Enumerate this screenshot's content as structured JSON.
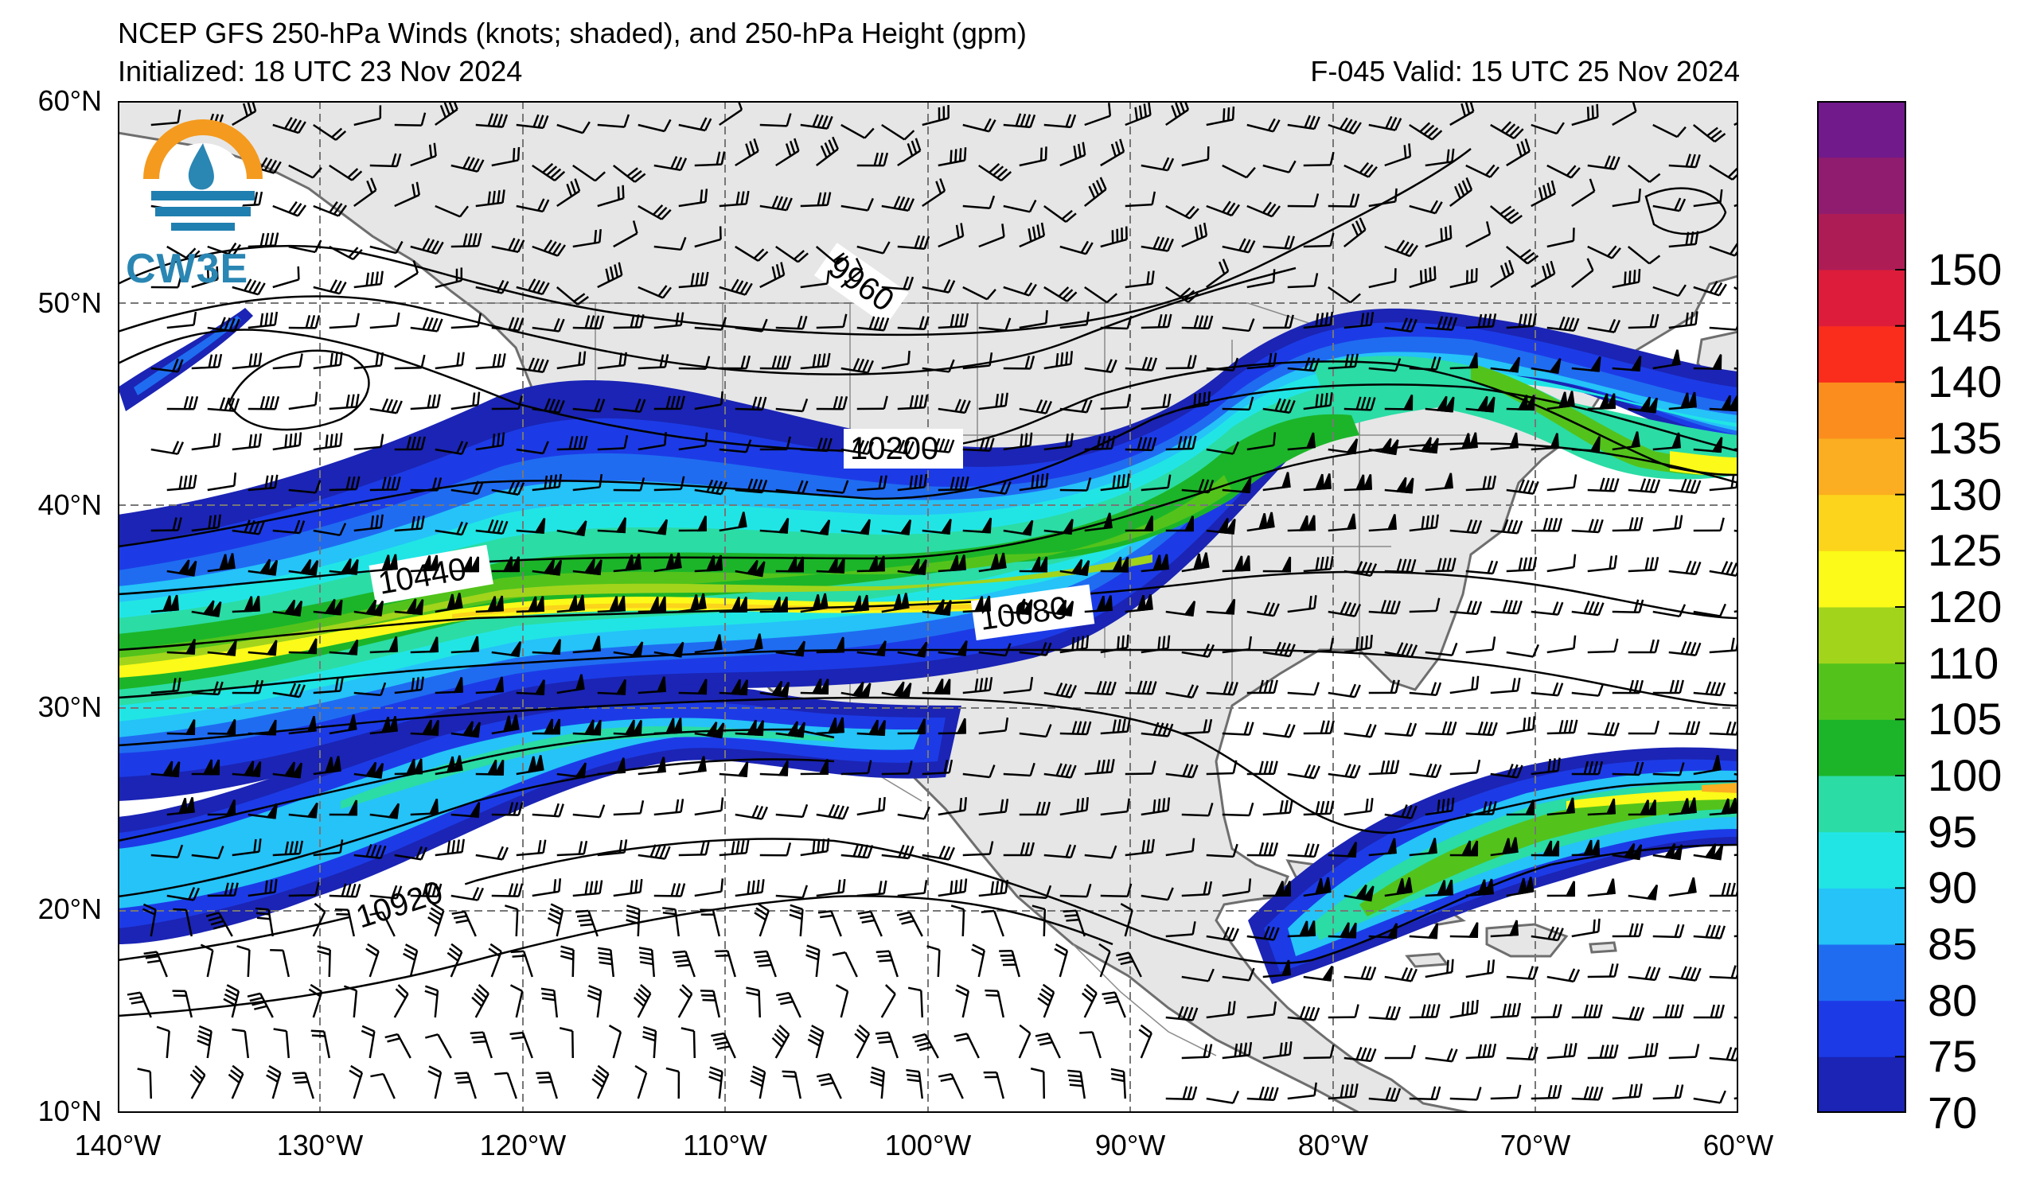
{
  "header": {
    "title": "NCEP GFS 250-hPa Winds (knots; shaded), and 250-hPa Height (gpm)",
    "initialized": "Initialized: 18 UTC 23 Nov 2024",
    "valid": "F-045  Valid: 15 UTC 25 Nov 2024"
  },
  "logo": {
    "text": "CW3E"
  },
  "map": {
    "extent": {
      "lon": [
        -140,
        -60
      ],
      "lat": [
        10,
        60
      ]
    },
    "lat_labels": [
      "60°N",
      "50°N",
      "40°N",
      "30°N",
      "20°N",
      "10°N"
    ],
    "lon_labels": [
      "140°W",
      "130°W",
      "120°W",
      "110°W",
      "100°W",
      "90°W",
      "80°W",
      "70°W",
      "60°W"
    ],
    "contour_labels": [
      "9960",
      "10200",
      "10440",
      "10680",
      "10920"
    ],
    "colors": {
      "land": "#e6e6e6",
      "ocean": "#ffffff",
      "coast": "#6e6e6e"
    }
  },
  "colorbar": {
    "levels": [
      70,
      75,
      80,
      85,
      90,
      95,
      100,
      105,
      110,
      120,
      125,
      130,
      135,
      140,
      145,
      150,
      155
    ],
    "tick_labels": [
      "70",
      "75",
      "80",
      "85",
      "90",
      "95",
      "100",
      "105",
      "110",
      "120",
      "125",
      "130",
      "135",
      "140",
      "145",
      "150"
    ],
    "colors": [
      "#1b24b4",
      "#1c3be6",
      "#1f6cf1",
      "#25c3f8",
      "#21e5e5",
      "#2bdca5",
      "#1cb529",
      "#53c31b",
      "#a2d41c",
      "#fbfa18",
      "#fbd41b",
      "#fbae21",
      "#fb8d1e",
      "#fa2d1d",
      "#dc1c3a",
      "#ae1c55",
      "#901c70",
      "#701a8c"
    ]
  }
}
